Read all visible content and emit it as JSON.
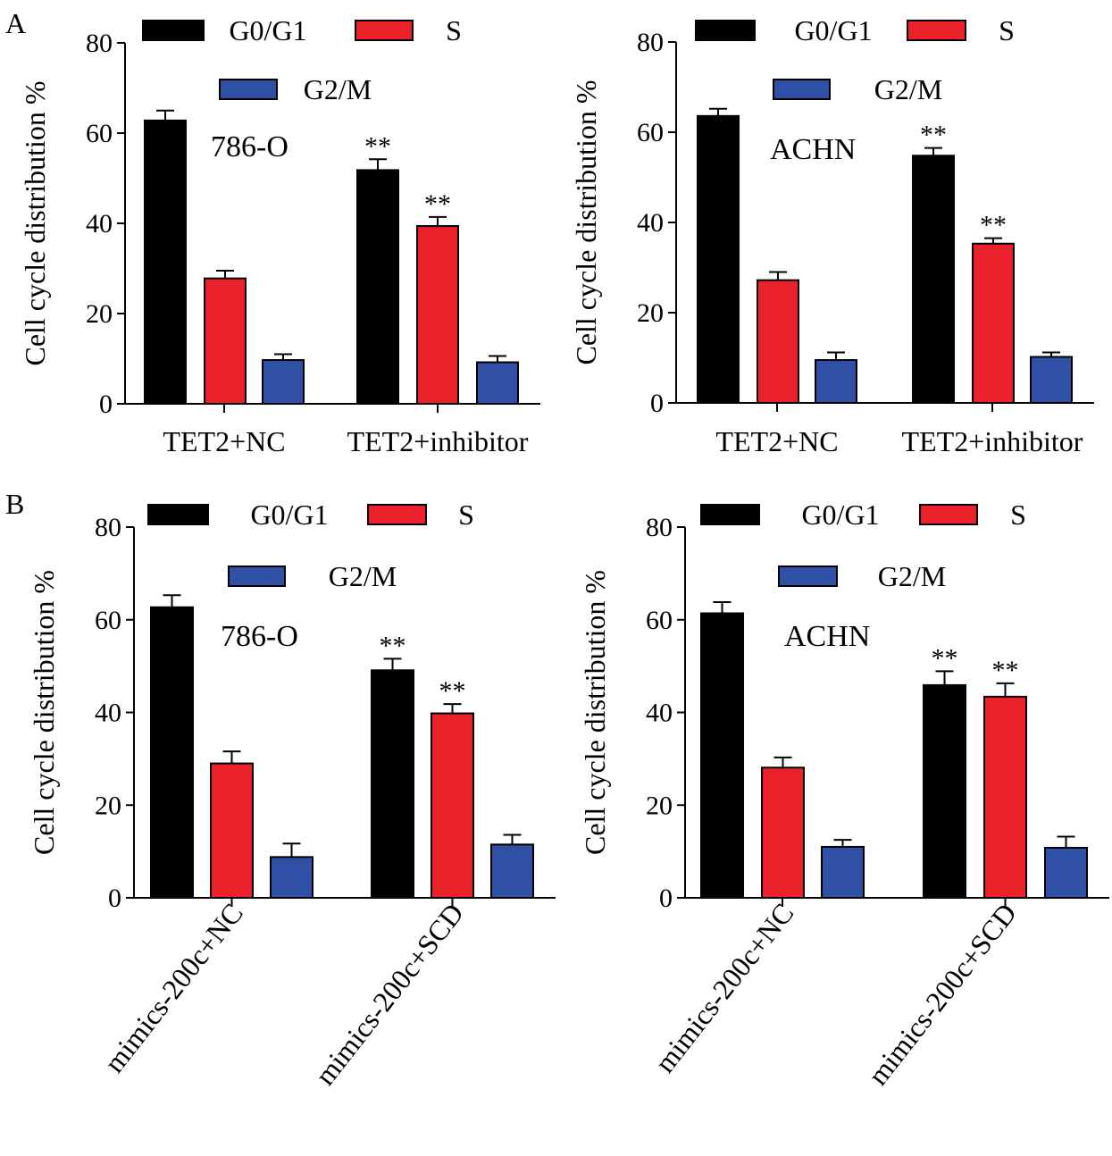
{
  "panel_letters": {
    "A": "A",
    "B": "B"
  },
  "legend_labels": {
    "g0g1": "G0/G1",
    "s": "S",
    "g2m": "G2/M"
  },
  "series_colors": {
    "G0/G1": "#000000",
    "S": "#e8212b",
    "G2/M": "#2f50a5"
  },
  "significance_marker": "**",
  "chart_data": [
    {
      "type": "bar",
      "panel": "A",
      "cell_line": "786-O",
      "ylabel": "Cell cycle distribution %",
      "ylim": [
        0,
        80
      ],
      "yticks": [
        "0",
        "20",
        "40",
        "60",
        "80"
      ],
      "categories": [
        "TET2+NC",
        "TET2+inhibitor"
      ],
      "series": [
        {
          "name": "G0/G1",
          "values": [
            62.8,
            51.8
          ],
          "errors": [
            2.2,
            2.4
          ]
        },
        {
          "name": "S",
          "values": [
            27.8,
            39.4
          ],
          "errors": [
            1.7,
            2.0
          ]
        },
        {
          "name": "G2/M",
          "values": [
            9.7,
            9.2
          ],
          "errors": [
            1.3,
            1.4
          ]
        }
      ],
      "significance": [
        [
          false,
          true
        ],
        [
          false,
          true
        ],
        [
          false,
          false
        ]
      ],
      "legend": "top"
    },
    {
      "type": "bar",
      "panel": "A",
      "cell_line": "ACHN",
      "ylabel": "Cell cycle distribution %",
      "ylim": [
        0,
        80
      ],
      "yticks": [
        "0",
        "20",
        "40",
        "60",
        "80"
      ],
      "categories": [
        "TET2+NC",
        "TET2+inhibitor"
      ],
      "series": [
        {
          "name": "G0/G1",
          "values": [
            63.6,
            54.8
          ],
          "errors": [
            1.6,
            1.7
          ]
        },
        {
          "name": "S",
          "values": [
            27.2,
            35.3
          ],
          "errors": [
            1.8,
            1.2
          ]
        },
        {
          "name": "G2/M",
          "values": [
            9.5,
            10.2
          ],
          "errors": [
            1.7,
            1.0
          ]
        }
      ],
      "significance": [
        [
          false,
          true
        ],
        [
          false,
          true
        ],
        [
          false,
          false
        ]
      ],
      "legend": "top"
    },
    {
      "type": "bar",
      "panel": "B",
      "cell_line": "786-O",
      "ylabel": "Cell cycle distribution %",
      "ylim": [
        0,
        80
      ],
      "yticks": [
        "0",
        "20",
        "40",
        "60",
        "80"
      ],
      "categories": [
        "mimics-200c+NC",
        "mimics-200c+SCD"
      ],
      "series": [
        {
          "name": "G0/G1",
          "values": [
            62.7,
            49.1
          ],
          "errors": [
            2.6,
            2.5
          ]
        },
        {
          "name": "S",
          "values": [
            29.0,
            39.8
          ],
          "errors": [
            2.6,
            2.0
          ]
        },
        {
          "name": "G2/M",
          "values": [
            8.8,
            11.5
          ],
          "errors": [
            2.9,
            2.1
          ]
        }
      ],
      "significance": [
        [
          false,
          true
        ],
        [
          false,
          true
        ],
        [
          false,
          false
        ]
      ],
      "legend": "top"
    },
    {
      "type": "bar",
      "panel": "B",
      "cell_line": "ACHN",
      "ylabel": "Cell cycle distribution %",
      "ylim": [
        0,
        80
      ],
      "yticks": [
        "0",
        "20",
        "40",
        "60",
        "80"
      ],
      "categories": [
        "mimics-200c+NC",
        "mimics-200c+SCD"
      ],
      "series": [
        {
          "name": "G0/G1",
          "values": [
            61.4,
            45.9
          ],
          "errors": [
            2.4,
            3.0
          ]
        },
        {
          "name": "S",
          "values": [
            28.1,
            43.4
          ],
          "errors": [
            2.2,
            2.9
          ]
        },
        {
          "name": "G2/M",
          "values": [
            11.0,
            10.8
          ],
          "errors": [
            1.5,
            2.4
          ]
        }
      ],
      "significance": [
        [
          false,
          true
        ],
        [
          false,
          true
        ],
        [
          false,
          false
        ]
      ],
      "legend": "top"
    }
  ]
}
